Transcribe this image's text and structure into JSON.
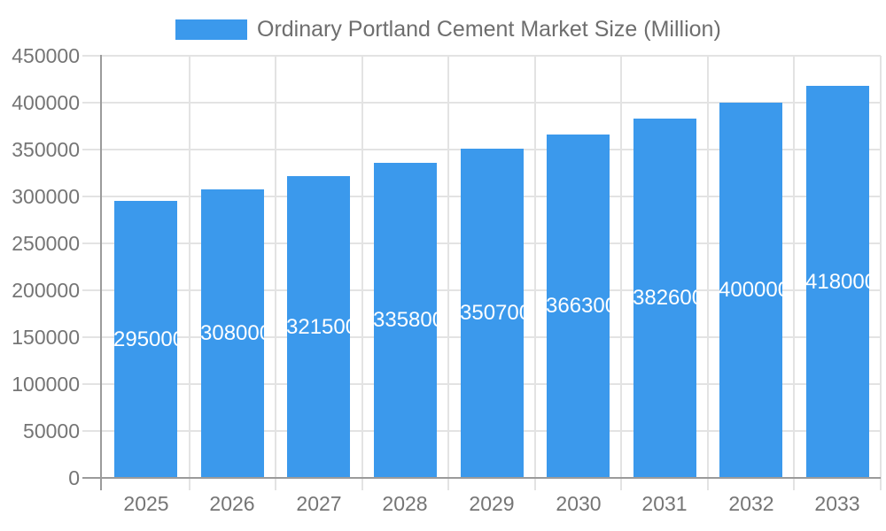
{
  "chart_data": {
    "type": "bar",
    "title": "Ordinary Portland Cement Market Size (Million)",
    "legend_position": "top",
    "categories": [
      "2025",
      "2026",
      "2027",
      "2028",
      "2029",
      "2030",
      "2031",
      "2032",
      "2033"
    ],
    "series": [
      {
        "name": "Ordinary Portland Cement Market Size (Million)",
        "values": [
          295000,
          308000,
          321500,
          335800,
          350700,
          366300,
          382600,
          400000,
          418000
        ],
        "value_labels": [
          "295000",
          "308000",
          "321500",
          "335800",
          "350700",
          "366300",
          "382600",
          "400000",
          "418000"
        ]
      }
    ],
    "xlabel": "",
    "ylabel": "",
    "ylim": [
      0,
      450000
    ],
    "y_tick_step": 50000,
    "y_tick_labels": [
      "0",
      "50000",
      "100000",
      "150000",
      "200000",
      "250000",
      "300000",
      "350000",
      "400000",
      "450000"
    ],
    "grid": true,
    "bar_value_labels_inside": true
  },
  "colors": {
    "bar": "#3B99EC",
    "bar_label_text": "#FFFFFF",
    "title_text": "#6E6E6E",
    "axis_text": "#757575",
    "gridline": "#E3E3E3",
    "axis_line": "#9B9B9B",
    "background": "#FFFFFF"
  }
}
